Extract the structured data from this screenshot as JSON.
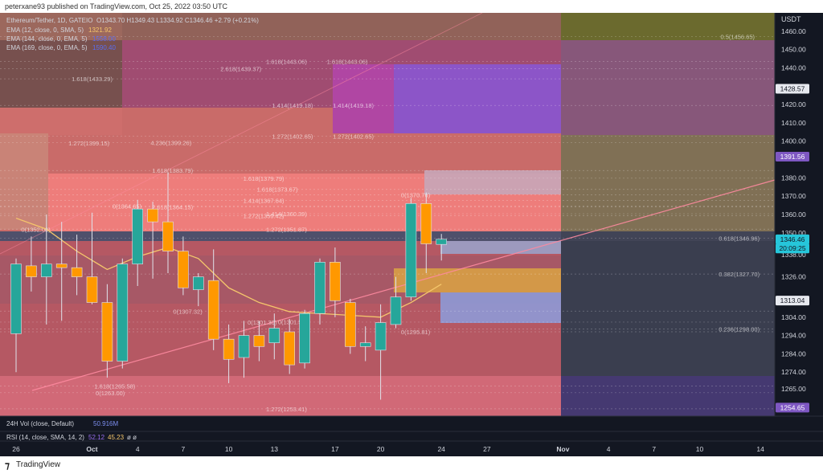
{
  "header": {
    "published": "peterxane93 published on TradingView.com, Oct 25, 2022 03:50 UTC"
  },
  "legend": {
    "symbol": "Ethereum/Tether, 1D, GATEIO",
    "ohlc": "O1343.70  H1349.43  L1334.92  C1346.46  +2.79 (+0.21%)",
    "ema12_label": "EMA (12, close, 0, SMA, 5)",
    "ema12_value": "1321.92",
    "ema144_label": "EMA (144, close, 0, EMA, 5)",
    "ema144_value": "1558.00",
    "ema169_label": "EMA (169, close, 0, EMA, 5)",
    "ema169_value": "1590.40"
  },
  "price_axis": {
    "currency": "USDT",
    "ticks": [
      "1460.00",
      "1450.00",
      "1440.00",
      "1420.00",
      "1410.00",
      "1400.00",
      "1380.00",
      "1370.00",
      "1360.00",
      "1350.00",
      "1338.00",
      "1326.00",
      "1304.00",
      "1294.00",
      "1284.00",
      "1274.00",
      "1265.00"
    ],
    "tags": [
      {
        "name": "tag-1428",
        "text": "1428.57",
        "value": 1428.57,
        "bg": "#e7e9ef",
        "fg": "#131722"
      },
      {
        "name": "tag-1391",
        "text": "1391.56",
        "value": 1391.56,
        "bg": "#7e57c2",
        "fg": "#ffffff"
      },
      {
        "name": "tag-last",
        "text": "1346.46",
        "value": 1346.46,
        "bg": "#26c6da",
        "fg": "#131722"
      },
      {
        "name": "tag-countdown",
        "text": "20:09:25",
        "value": 1341.5,
        "bg": "#26c6da",
        "fg": "#131722"
      },
      {
        "name": "tag-1313",
        "text": "1313.04",
        "value": 1313.04,
        "bg": "#e7e9ef",
        "fg": "#131722"
      },
      {
        "name": "tag-1254",
        "text": "1254.65",
        "value": 1254.65,
        "bg": "#7e57c2",
        "fg": "#ffffff"
      }
    ]
  },
  "time_axis": {
    "labels": [
      {
        "text": "26",
        "bar": 0,
        "bold": false
      },
      {
        "text": "Oct",
        "bar": 5,
        "bold": true
      },
      {
        "text": "4",
        "bar": 8,
        "bold": false
      },
      {
        "text": "7",
        "bar": 11,
        "bold": false
      },
      {
        "text": "10",
        "bar": 14,
        "bold": false
      },
      {
        "text": "13",
        "bar": 17,
        "bold": false
      },
      {
        "text": "17",
        "bar": 21,
        "bold": false
      },
      {
        "text": "20",
        "bar": 24,
        "bold": false
      },
      {
        "text": "24",
        "bar": 28,
        "bold": false
      },
      {
        "text": "27",
        "bar": 31,
        "bold": false
      },
      {
        "text": "Nov",
        "bar": 36,
        "bold": true
      },
      {
        "text": "4",
        "bar": 39,
        "bold": false
      },
      {
        "text": "7",
        "bar": 42,
        "bold": false
      },
      {
        "text": "10",
        "bar": 45,
        "bold": false
      },
      {
        "text": "14",
        "bar": 49,
        "bold": false
      }
    ]
  },
  "fib_labels": [
    {
      "text": "0.5(1456.65)",
      "bar": 47.5,
      "price": 1457
    },
    {
      "text": "1.618(1443.06)",
      "bar": 17.8,
      "price": 1443.5
    },
    {
      "text": "1.618(1443.06)",
      "bar": 21.8,
      "price": 1443.5
    },
    {
      "text": "2.618(1439.37)",
      "bar": 14.8,
      "price": 1439.5
    },
    {
      "text": "1.618(1433.29)",
      "bar": 5,
      "price": 1434
    },
    {
      "text": "1.414(1419.18)",
      "bar": 18.2,
      "price": 1419.5
    },
    {
      "text": "1.414(1419.18)",
      "bar": 22.2,
      "price": 1419.5
    },
    {
      "text": "1.272(1402.65)",
      "bar": 18.2,
      "price": 1402.7
    },
    {
      "text": "1.272(1402.65)",
      "bar": 22.2,
      "price": 1402.7
    },
    {
      "text": "4.236(1399.26)",
      "bar": 10.2,
      "price": 1399.3
    },
    {
      "text": "1.272(1399.15)",
      "bar": 4.8,
      "price": 1399
    },
    {
      "text": "1.618(1383.79)",
      "bar": 10.3,
      "price": 1384
    },
    {
      "text": "1.618(1379.79)",
      "bar": 16.3,
      "price": 1379.8
    },
    {
      "text": "1.618(1373.67)",
      "bar": 17.2,
      "price": 1373.7
    },
    {
      "text": "0(1370.76)",
      "bar": 26.3,
      "price": 1370.8
    },
    {
      "text": "1.414(1367.64)",
      "bar": 16.3,
      "price": 1367.6
    },
    {
      "text": "0(1364.65)",
      "bar": 7.3,
      "price": 1364.6
    },
    {
      "text": "2.618(1364.15)",
      "bar": 10.3,
      "price": 1364.1
    },
    {
      "text": "1.414(1360.39)",
      "bar": 17.8,
      "price": 1360.4
    },
    {
      "text": "1.272(1359.42)",
      "bar": 16.3,
      "price": 1359.4
    },
    {
      "text": "0(1352.00)",
      "bar": 1.3,
      "price": 1352
    },
    {
      "text": "1.272(1351.87)",
      "bar": 17.8,
      "price": 1351.9
    },
    {
      "text": "0.618(1346.96)",
      "bar": 47.6,
      "price": 1347
    },
    {
      "text": "0.382(1327.70)",
      "bar": 47.6,
      "price": 1327.5
    },
    {
      "text": "0(1307.32)",
      "bar": 11.3,
      "price": 1307.3
    },
    {
      "text": "0(1301.30)",
      "bar": 16.2,
      "price": 1301.3
    },
    {
      "text": "0(1301.57)",
      "bar": 18.2,
      "price": 1301.4
    },
    {
      "text": "0.236(1298.00)",
      "bar": 47.6,
      "price": 1297.5
    },
    {
      "text": "0(1295.81)",
      "bar": 26.3,
      "price": 1296
    },
    {
      "text": "1.618(1265.58)",
      "bar": 6.5,
      "price": 1266.5
    },
    {
      "text": "0(1263.00)",
      "bar": 6.2,
      "price": 1262.8
    },
    {
      "text": "1.272(1253.41)",
      "bar": 17.8,
      "price": 1254
    }
  ],
  "indicators": {
    "vol_label": "24H Vol (close, Default)",
    "vol_value": "50.916M",
    "rsi_label": "RSI (14, close, SMA, 14, 2)",
    "rsi_value1": "52.12",
    "rsi_value2": "45.23",
    "rsi_suffix": "ø  ø"
  },
  "footer": {
    "brand": "TradingView"
  },
  "colors": {
    "up": "#26a69a",
    "down": "#ff9800",
    "ema": "#f5c66b",
    "bg": "#131722"
  },
  "chart_data": {
    "type": "candlestick",
    "y_range": [
      1250,
      1470
    ],
    "bars_visible": [
      -0.5,
      51
    ],
    "candles": [
      {
        "bar": 0,
        "o": 1295,
        "h": 1336,
        "l": 1274,
        "c": 1333
      },
      {
        "bar": 1,
        "o": 1332,
        "h": 1348,
        "l": 1318,
        "c": 1326
      },
      {
        "bar": 2,
        "o": 1326,
        "h": 1360,
        "l": 1300,
        "c": 1333
      },
      {
        "bar": 3,
        "o": 1333,
        "h": 1356,
        "l": 1302,
        "c": 1331
      },
      {
        "bar": 4,
        "o": 1331,
        "h": 1349,
        "l": 1316,
        "c": 1326
      },
      {
        "bar": 5,
        "o": 1326,
        "h": 1361,
        "l": 1311,
        "c": 1312
      },
      {
        "bar": 6,
        "o": 1312,
        "h": 1322,
        "l": 1271,
        "c": 1280
      },
      {
        "bar": 7,
        "o": 1280,
        "h": 1336,
        "l": 1276,
        "c": 1333
      },
      {
        "bar": 8,
        "o": 1333,
        "h": 1368,
        "l": 1321,
        "c": 1363
      },
      {
        "bar": 9,
        "o": 1363,
        "h": 1367,
        "l": 1325,
        "c": 1356
      },
      {
        "bar": 10,
        "o": 1356,
        "h": 1383,
        "l": 1328,
        "c": 1340
      },
      {
        "bar": 11,
        "o": 1340,
        "h": 1348,
        "l": 1316,
        "c": 1320
      },
      {
        "bar": 12,
        "o": 1319,
        "h": 1328,
        "l": 1310,
        "c": 1326
      },
      {
        "bar": 13,
        "o": 1324,
        "h": 1341,
        "l": 1286,
        "c": 1292
      },
      {
        "bar": 14,
        "o": 1292,
        "h": 1300,
        "l": 1268,
        "c": 1281
      },
      {
        "bar": 15,
        "o": 1282,
        "h": 1302,
        "l": 1271,
        "c": 1294
      },
      {
        "bar": 16,
        "o": 1294,
        "h": 1302,
        "l": 1280,
        "c": 1288
      },
      {
        "bar": 17,
        "o": 1290,
        "h": 1306,
        "l": 1281,
        "c": 1298
      },
      {
        "bar": 18,
        "o": 1296,
        "h": 1303,
        "l": 1273,
        "c": 1278
      },
      {
        "bar": 19,
        "o": 1279,
        "h": 1308,
        "l": 1276,
        "c": 1306
      },
      {
        "bar": 20,
        "o": 1306,
        "h": 1336,
        "l": 1300,
        "c": 1334
      },
      {
        "bar": 21,
        "o": 1334,
        "h": 1342,
        "l": 1304,
        "c": 1313
      },
      {
        "bar": 22,
        "o": 1312,
        "h": 1314,
        "l": 1284,
        "c": 1288
      },
      {
        "bar": 23,
        "o": 1288,
        "h": 1299,
        "l": 1280,
        "c": 1290
      },
      {
        "bar": 24,
        "o": 1286,
        "h": 1311,
        "l": 1259,
        "c": 1301
      },
      {
        "bar": 25,
        "o": 1300,
        "h": 1326,
        "l": 1298,
        "c": 1315
      },
      {
        "bar": 26,
        "o": 1315,
        "h": 1369,
        "l": 1313,
        "c": 1366
      },
      {
        "bar": 27,
        "o": 1366,
        "h": 1372,
        "l": 1328,
        "c": 1344
      },
      {
        "bar": 28,
        "o": 1343.7,
        "h": 1349.4,
        "l": 1334.9,
        "c": 1346.5
      }
    ],
    "ema12": [
      {
        "bar": 0,
        "v": 1358
      },
      {
        "bar": 2,
        "v": 1352
      },
      {
        "bar": 4,
        "v": 1340
      },
      {
        "bar": 6,
        "v": 1330
      },
      {
        "bar": 8,
        "v": 1337
      },
      {
        "bar": 10,
        "v": 1342
      },
      {
        "bar": 12,
        "v": 1336
      },
      {
        "bar": 14,
        "v": 1320
      },
      {
        "bar": 16,
        "v": 1312
      },
      {
        "bar": 18,
        "v": 1307
      },
      {
        "bar": 20,
        "v": 1306
      },
      {
        "bar": 22,
        "v": 1305
      },
      {
        "bar": 24,
        "v": 1304
      },
      {
        "bar": 26,
        "v": 1312
      },
      {
        "bar": 28,
        "v": 1322
      }
    ]
  }
}
